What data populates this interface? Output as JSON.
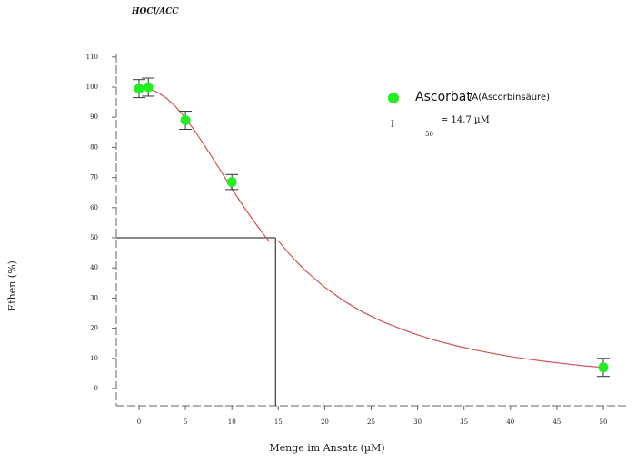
{
  "chart_data": {
    "type": "scatter",
    "title": "HOCl/ACC",
    "xlabel": "Menge im Ansatz (µM)",
    "ylabel": "Ethen (%)",
    "x_ticks": [
      0,
      5,
      10,
      15,
      20,
      25,
      30,
      35,
      40,
      45,
      50
    ],
    "y_ticks": [
      0,
      10,
      20,
      30,
      40,
      50,
      60,
      70,
      80,
      90,
      100,
      110
    ],
    "xlim": [
      -2,
      52
    ],
    "ylim": [
      -3,
      110
    ],
    "grid": false,
    "legend_position": "top-right",
    "series": [
      {
        "name_main": "Ascorbat",
        "name_sub": "/A(Ascorbinsäure)",
        "marker_color": "#22ee22",
        "x": [
          0,
          1,
          5,
          10,
          50
        ],
        "y": [
          99.5,
          100,
          89,
          68.5,
          7
        ],
        "error": [
          3,
          3,
          3,
          2.5,
          3
        ]
      }
    ],
    "fit_curve": {
      "color": "#cc5555",
      "x": [
        0,
        1,
        2,
        3,
        4,
        5,
        6,
        7,
        8,
        9,
        10,
        11,
        12,
        13,
        14,
        15,
        16,
        17,
        18,
        19,
        20,
        22,
        24,
        26,
        28,
        30,
        32,
        34,
        36,
        38,
        40,
        42,
        44,
        46,
        48,
        50
      ],
      "y": [
        100,
        99.5,
        98.3,
        96.2,
        93.3,
        89.7,
        85.5,
        80.9,
        76.1,
        71.2,
        66.3,
        61.6,
        57.1,
        52.8,
        48.9,
        49.0,
        45.3,
        42.0,
        38.9,
        36.2,
        33.6,
        29.2,
        25.5,
        22.5,
        20.0,
        17.8,
        15.9,
        14.3,
        12.9,
        11.7,
        10.6,
        9.7,
        8.9,
        8.2,
        7.5,
        7.0
      ]
    },
    "annotation": {
      "label": "I",
      "subscript": "50",
      "value": "= 14.7 µM",
      "x": 14.7,
      "y": 50
    }
  }
}
